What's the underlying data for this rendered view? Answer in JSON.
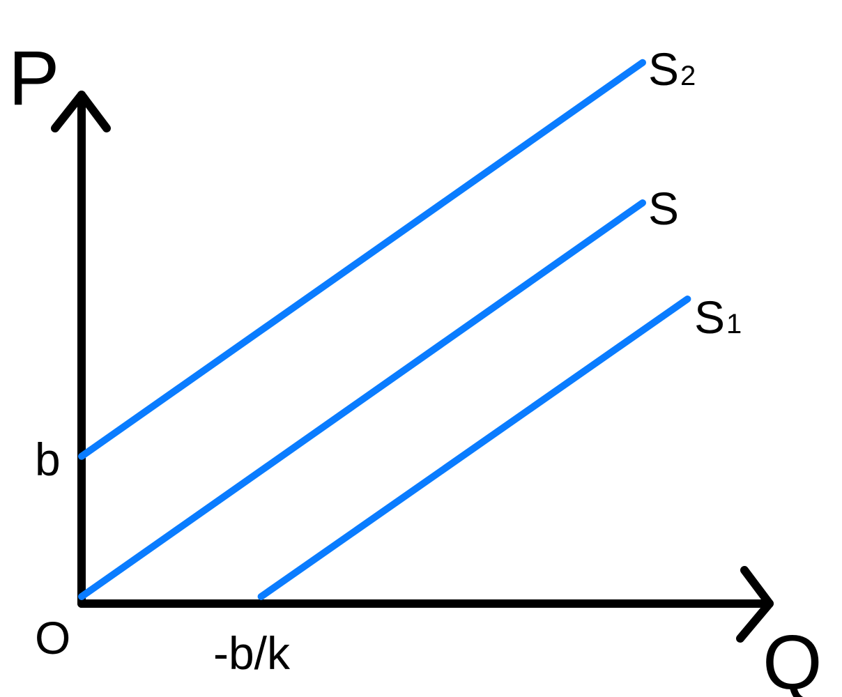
{
  "colors": {
    "axis": "#000000",
    "series": "#0a7cff"
  },
  "chart_data": {
    "type": "line",
    "xlabel": "Q",
    "ylabel": "P",
    "origin_label": "O",
    "tick_labels": {
      "y_intercept": "b",
      "x_intercept": "-b/k"
    },
    "series": [
      {
        "name": "S",
        "name_main": "S",
        "name_sub": "",
        "points": [
          [
            0,
            0
          ],
          [
            1,
            1
          ]
        ]
      },
      {
        "name": "S2",
        "name_main": "S",
        "name_sub": "2",
        "points": [
          [
            0,
            0.35
          ],
          [
            1,
            1.35
          ]
        ]
      },
      {
        "name": "S1",
        "name_main": "S",
        "name_sub": "1",
        "points": [
          [
            0.32,
            0
          ],
          [
            1.08,
            0.76
          ]
        ]
      }
    ]
  }
}
